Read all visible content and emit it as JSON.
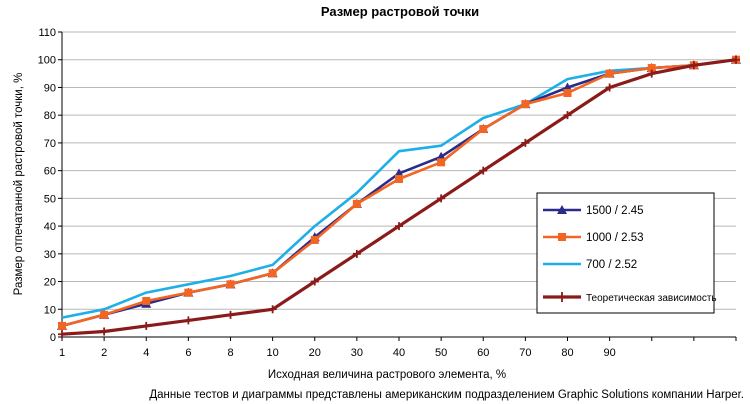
{
  "chart_data": {
    "type": "line",
    "title": "Размер растровой точки",
    "xlabel": "Исходная величина растрового элемента, %",
    "ylabel": "Размер отпечатанной растровой точки, %",
    "x_tick_labels": [
      "1",
      "2",
      "4",
      "6",
      "8",
      "10",
      "20",
      "30",
      "40",
      "50",
      "60",
      "70",
      "80",
      "90",
      "",
      "",
      ""
    ],
    "ylim": [
      0,
      110
    ],
    "y_ticks": [
      0,
      10,
      20,
      30,
      40,
      50,
      60,
      70,
      80,
      90,
      100,
      110
    ],
    "grid": true,
    "legend_position": "right",
    "series": [
      {
        "name": "1500 / 2.45",
        "color": "#2b2b8c",
        "marker": "triangle",
        "values": [
          4,
          8,
          12,
          16,
          19,
          23,
          36,
          48,
          59,
          65,
          75,
          84,
          90,
          95,
          97,
          98,
          100
        ]
      },
      {
        "name": "1000 / 2.53",
        "color": "#f26522",
        "marker": "square",
        "values": [
          4,
          8,
          13,
          16,
          19,
          23,
          35,
          48,
          57,
          63,
          75,
          84,
          88,
          95,
          97,
          98,
          100
        ]
      },
      {
        "name": "700 / 2.52",
        "color": "#1eaee8",
        "marker": "none",
        "values": [
          7,
          10,
          16,
          19,
          22,
          26,
          40,
          52,
          67,
          69,
          79,
          84,
          93,
          96,
          97,
          98,
          100
        ]
      },
      {
        "name": "Теоретическая зависимость",
        "color": "#8b1a1a",
        "marker": "plus",
        "values": [
          1,
          2,
          4,
          6,
          8,
          10,
          20,
          30,
          40,
          50,
          60,
          70,
          80,
          90,
          95,
          98,
          100
        ]
      }
    ],
    "footnote": "Данные тестов и диаграммы представлены американским подразделением Graphic Solutions компании Harper."
  }
}
